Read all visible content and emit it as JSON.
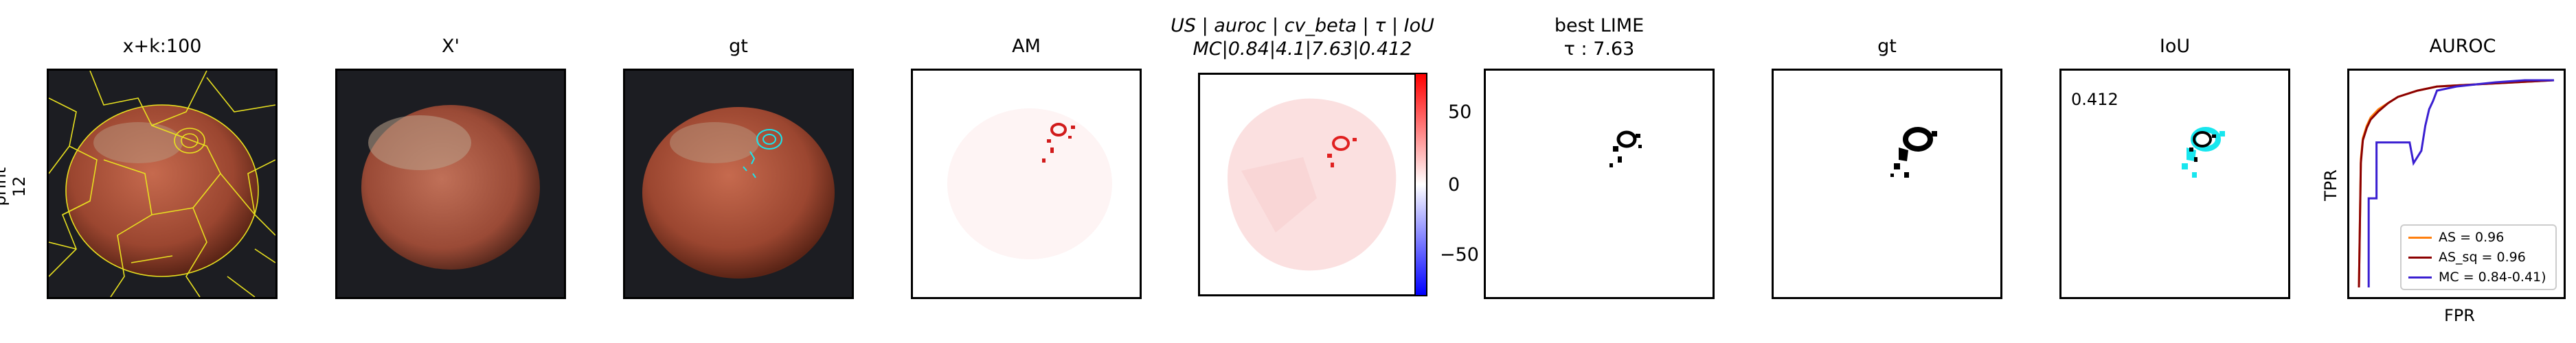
{
  "row_label": [
    "print",
    "12"
  ],
  "panels": [
    {
      "title": "x+k:100"
    },
    {
      "title": "X'"
    },
    {
      "title": "gt"
    },
    {
      "title": "AM"
    },
    {
      "title": "US | auroc | cv_beta | τ | IoU",
      "subtitle": "MC|0.84|4.1|7.63|0.412"
    },
    {
      "title": "best LIME",
      "subtitle": "τ : 7.63"
    },
    {
      "title": "gt"
    },
    {
      "title": "IoU",
      "annotation": "0.412"
    },
    {
      "title": "AUROC"
    }
  ],
  "colorbar": {
    "ticks": [
      "50",
      "0",
      "−50"
    ],
    "colormap": [
      "#0000ff",
      "#ffffff",
      "#ff0000"
    ]
  },
  "chart_data": {
    "type": "line",
    "title": "AUROC",
    "xlabel": "FPR",
    "ylabel": "TPR",
    "xlim": [
      0,
      1
    ],
    "ylim": [
      0,
      1
    ],
    "legend_position": "bottom-right",
    "series": [
      {
        "name": "AS = 0.96",
        "color": "#ff7f0e",
        "x": [
          0,
          0.01,
          0.02,
          0.04,
          0.06,
          0.1,
          0.15,
          0.2,
          0.3,
          0.4,
          0.6,
          0.8,
          1.0
        ],
        "y": [
          0,
          0.62,
          0.72,
          0.78,
          0.82,
          0.86,
          0.89,
          0.92,
          0.95,
          0.97,
          0.98,
          0.99,
          1.0
        ]
      },
      {
        "name": "AS_sq = 0.96",
        "color": "#8b0000",
        "x": [
          0,
          0.01,
          0.02,
          0.04,
          0.06,
          0.1,
          0.15,
          0.2,
          0.3,
          0.4,
          0.6,
          0.8,
          1.0
        ],
        "y": [
          0,
          0.6,
          0.71,
          0.77,
          0.81,
          0.85,
          0.89,
          0.92,
          0.95,
          0.97,
          0.98,
          0.99,
          1.0
        ]
      },
      {
        "name": "MC = 0.84-0.41)",
        "color": "#3a1fd1",
        "x": [
          0.05,
          0.05,
          0.07,
          0.09,
          0.09,
          0.26,
          0.28,
          0.32,
          0.34,
          0.36,
          0.38,
          0.4,
          0.5,
          0.6,
          0.7,
          0.85,
          1.0
        ],
        "y": [
          0,
          0.43,
          0.43,
          0.43,
          0.7,
          0.7,
          0.6,
          0.66,
          0.78,
          0.86,
          0.9,
          0.95,
          0.97,
          0.98,
          0.99,
          1.0,
          1.0
        ]
      }
    ]
  }
}
